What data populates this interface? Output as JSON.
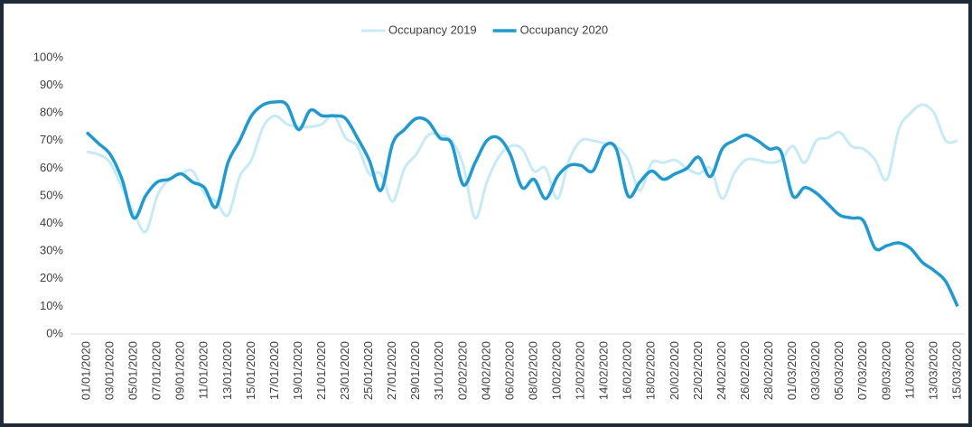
{
  "chart_data": {
    "type": "line",
    "categories": [
      "01/01/2020",
      null,
      "03/01/2020",
      null,
      "05/01/2020",
      null,
      "07/01/2020",
      null,
      "09/01/2020",
      null,
      "11/01/2020",
      null,
      "13/01/2020",
      null,
      "15/01/2020",
      null,
      "17/01/2020",
      null,
      "19/01/2020",
      null,
      "21/01/2020",
      null,
      "23/01/2020",
      null,
      "25/01/2020",
      null,
      "27/01/2020",
      null,
      "29/01/2020",
      null,
      "31/01/2020",
      null,
      "02/02/2020",
      null,
      "04/02/2020",
      null,
      "06/02/2020",
      null,
      "08/02/2020",
      null,
      "10/02/2020",
      null,
      "12/02/2020",
      null,
      "14/02/2020",
      null,
      "16/02/2020",
      null,
      "18/02/2020",
      null,
      "20/02/2020",
      null,
      "22/02/2020",
      null,
      "24/02/2020",
      null,
      "26/02/2020",
      null,
      "28/02/2020",
      null,
      "01/03/2020",
      null,
      "03/03/2020",
      null,
      "05/03/2020",
      null,
      "07/03/2020",
      null,
      "09/03/2020",
      null,
      "11/03/2020",
      null,
      "13/03/2020",
      null,
      "15/03/2020"
    ],
    "series": [
      {
        "name": "Occupancy 2019",
        "color": "#c5ebf7",
        "width": 3,
        "values": [
          66,
          65,
          62,
          53,
          44,
          37,
          50,
          56,
          58,
          59,
          51,
          48,
          43,
          57,
          63,
          75,
          79,
          76,
          75,
          75,
          76,
          79,
          71,
          68,
          58,
          58,
          48,
          60,
          65,
          72,
          72,
          70,
          61,
          42,
          55,
          64,
          68,
          67,
          59,
          60,
          49,
          63,
          70,
          70,
          69,
          68,
          63,
          52,
          62,
          62,
          63,
          60,
          58,
          60,
          49,
          58,
          63,
          63,
          62,
          63,
          68,
          62,
          70,
          71,
          73,
          68,
          67,
          63,
          56,
          74,
          80,
          83,
          80,
          70,
          70
        ]
      },
      {
        "name": "Occupancy 2020",
        "color": "#1a9bd7",
        "width": 3.5,
        "values": [
          73,
          69,
          65,
          56,
          42,
          50,
          55,
          56,
          58,
          55,
          53,
          46,
          62,
          70,
          79,
          83,
          84,
          83,
          74,
          81,
          79,
          79,
          78,
          71,
          63,
          52,
          69,
          74,
          78,
          77,
          71,
          69,
          54,
          62,
          70,
          71,
          65,
          53,
          56,
          49,
          57,
          61,
          61,
          59,
          68,
          67,
          50,
          55,
          59,
          56,
          58,
          60,
          64,
          57,
          67,
          70,
          72,
          70,
          67,
          66,
          50,
          53,
          51,
          47,
          43,
          42,
          41,
          31,
          32,
          33,
          31,
          26,
          23,
          19,
          10
        ]
      }
    ],
    "ylim": [
      0,
      100
    ],
    "yticks": [
      {
        "value": 0,
        "label": "0%"
      },
      {
        "value": 10,
        "label": "10%"
      },
      {
        "value": 20,
        "label": "20%"
      },
      {
        "value": 30,
        "label": "30%"
      },
      {
        "value": 40,
        "label": "40%"
      },
      {
        "value": 50,
        "label": "50%"
      },
      {
        "value": 60,
        "label": "60%"
      },
      {
        "value": 70,
        "label": "70%"
      },
      {
        "value": 80,
        "label": "80%"
      },
      {
        "value": 90,
        "label": "90%"
      },
      {
        "value": 100,
        "label": "100%"
      }
    ],
    "grid": false,
    "legend": "top"
  }
}
